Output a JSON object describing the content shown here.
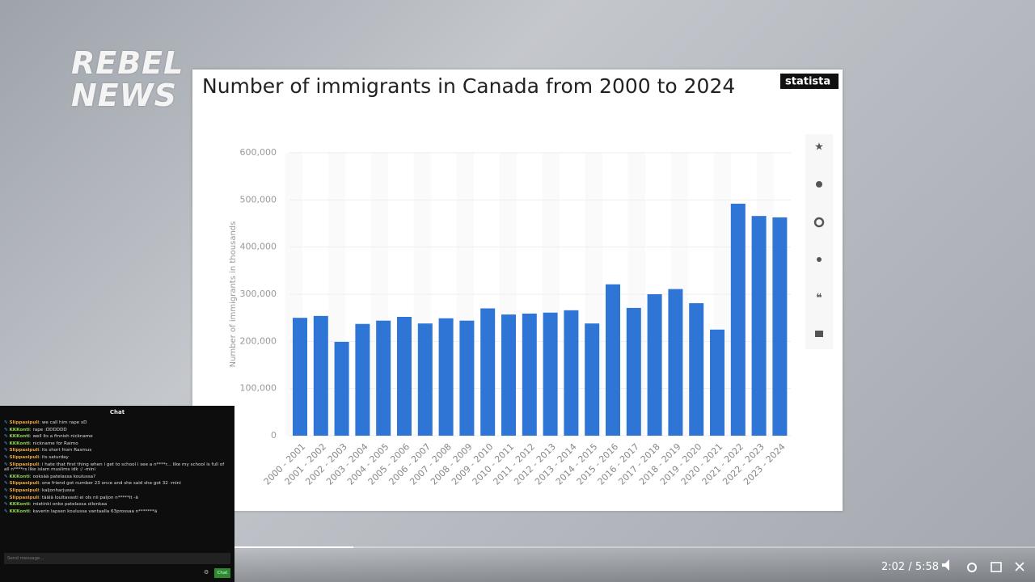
{
  "logo": {
    "line1": "REBEL",
    "line2": "NEWS"
  },
  "statista": "statista",
  "chart_data": {
    "type": "bar",
    "title": "Number of immigrants in Canada from 2000 to 2024",
    "y_label": "Number of immigrants in thousands",
    "categories": [
      "2000 - 2001",
      "2001 - 2002",
      "2002 - 2003",
      "2003 - 2004",
      "2004 - 2005",
      "2005 - 2006",
      "2006 - 2007",
      "2007 - 2008",
      "2008 - 2009",
      "2009 - 2010",
      "2010 - 2011",
      "2011 - 2012",
      "2012 - 2013",
      "2013 - 2014",
      "2014 - 2015",
      "2015 - 2016",
      "2016 - 2017",
      "2017 - 2018",
      "2018 - 2019",
      "2019 - 2020",
      "2020 - 2021",
      "2021 - 2022",
      "2022 - 2023",
      "2023 - 2024"
    ],
    "values": [
      250000,
      254000,
      199000,
      237000,
      244000,
      252000,
      238000,
      249000,
      244000,
      270000,
      257000,
      259000,
      261000,
      266000,
      238000,
      321000,
      271000,
      300000,
      311000,
      281000,
      225000,
      492000,
      466000,
      463000
    ],
    "color": "#2f75d6",
    "ylim": [
      0,
      600000
    ],
    "yticks": [
      0,
      {
        "value": 100000,
        "label": "100,000"
      },
      {
        "value": 200000,
        "label": "200,000"
      },
      {
        "value": 300000,
        "label": "300,000"
      },
      {
        "value": 400000,
        "label": "400,000"
      },
      {
        "value": 500000,
        "label": "500,000"
      },
      {
        "value": 600000,
        "label": "600,000"
      }
    ],
    "grid": true
  },
  "chat": {
    "title": "Chat",
    "messages": [
      {
        "user": "Slippasipuli",
        "text": "we call him rape xD"
      },
      {
        "user": "KKKonti",
        "text": "rape :DDDDDD"
      },
      {
        "user": "KKKonti",
        "text": "well its a finnish nickname"
      },
      {
        "user": "KKKonti",
        "text": "nickname for Raimo"
      },
      {
        "user": "Slippasipuli",
        "text": "its short from Rasmus"
      },
      {
        "user": "Slippasipuli",
        "text": "its saturday"
      },
      {
        "user": "Slippasipuli",
        "text": "i hate that first thing when i get to school i see a n****r... like my school is full of all n****rs like islam muslims idk :/ -mini"
      },
      {
        "user": "KKKonti",
        "text": "ooksää patelassa koulussa?"
      },
      {
        "user": "Slippasipuli",
        "text": "one friend got number 23 once and she said she got 32 -mini"
      },
      {
        "user": "Slippasipuli",
        "text": "kaljonharjussa"
      },
      {
        "user": "Slippasipuli",
        "text": "täälä loultavasti ei ols nii paljon n*****it -ä"
      },
      {
        "user": "KKKonti",
        "text": "mietinki onko patelassa ollenkaa"
      },
      {
        "user": "KKKonti",
        "text": "kaverin lapsen koulussa vantaalla 63prossaa n*******ä"
      }
    ],
    "placeholder": "Send message...",
    "button": "Chat"
  },
  "player": {
    "time": "2:02 / 5:58"
  }
}
